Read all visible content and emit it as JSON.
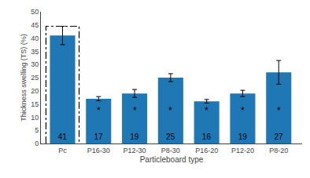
{
  "chart_data": {
    "type": "bar",
    "categories": [
      "Pc",
      "P16-30",
      "P12-30",
      "P8-30",
      "P16-20",
      "P12-20",
      "P8-20"
    ],
    "values": [
      41,
      17,
      19,
      25,
      16,
      19,
      27
    ],
    "errors": [
      3.5,
      0.8,
      1.5,
      1.5,
      0.7,
      1.2,
      4.5
    ],
    "data_labels": true,
    "ylim": [
      0,
      50
    ],
    "yticks": [
      0,
      5,
      10,
      15,
      20,
      25,
      30,
      35,
      40,
      45,
      50
    ],
    "ylabel": "Thickness swelling (TS) (%)",
    "xlabel": "Particleboard type",
    "grid": false,
    "annotations": [
      {
        "text": "*",
        "x": "P16-30",
        "y": 12.5
      },
      {
        "text": "*",
        "x": "P12-30",
        "y": 12.5
      },
      {
        "text": "*",
        "x": "P8-30",
        "y": 12.5
      },
      {
        "text": "*",
        "x": "P16-20",
        "y": 12.5
      },
      {
        "text": "*",
        "x": "P12-20",
        "y": 12.5
      },
      {
        "text": "*",
        "x": "P8-20",
        "y": 12.5
      }
    ],
    "box": {
      "x": "Pc",
      "y": [
        0,
        44.5
      ],
      "line_style": "dashdot"
    }
  }
}
